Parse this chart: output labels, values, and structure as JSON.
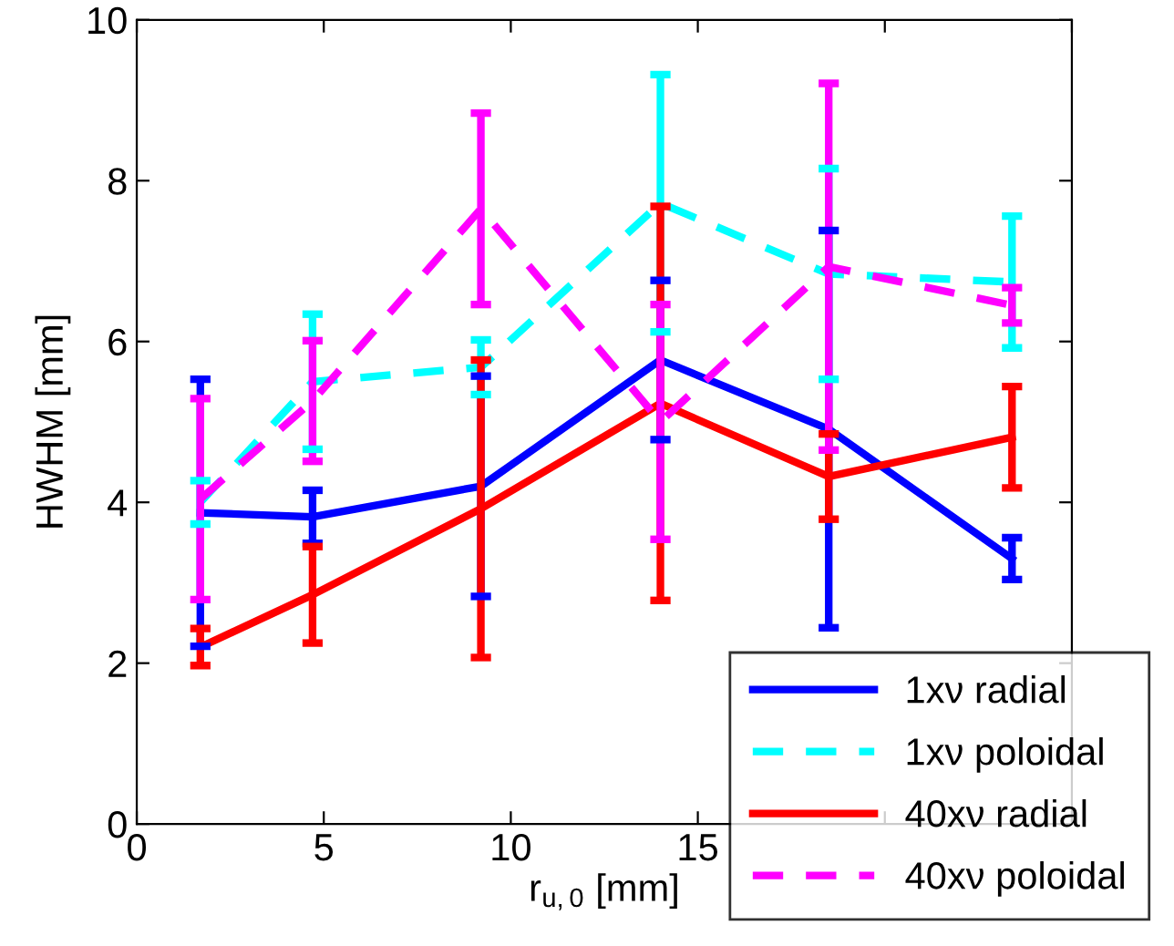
{
  "chart_data": {
    "type": "line",
    "xlabel": "r$_{u,0}$ [mm]",
    "ylabel": "HWHM [mm]",
    "x": [
      1.7,
      4.7,
      9.2,
      14.0,
      18.5,
      23.4
    ],
    "xlim": [
      0,
      25
    ],
    "xticks": [
      0,
      5,
      10,
      15,
      {
        "value": 20,
        "label": null
      },
      {
        "value": 25,
        "label": null
      }
    ],
    "ylim": [
      0,
      10
    ],
    "yticks": [
      0,
      2,
      4,
      6,
      8,
      10
    ],
    "grid": false,
    "legend": "bottom right",
    "marker": "none",
    "series": [
      {
        "name": "1xν radial",
        "color": "#0000ff",
        "line_style": "solid",
        "values": [
          3.87,
          3.82,
          4.2,
          5.77,
          4.91,
          3.3
        ],
        "errors": [
          1.66,
          0.33,
          1.37,
          0.99,
          2.47,
          0.26
        ]
      },
      {
        "name": "1xν poloidal",
        "color": "#00ffff",
        "line_style": "dashed",
        "values": [
          4.0,
          5.5,
          5.68,
          7.72,
          6.84,
          6.74
        ],
        "errors": [
          0.27,
          0.84,
          0.34,
          1.6,
          1.31,
          0.82
        ]
      },
      {
        "name": "40xν radial",
        "color": "#ff0000",
        "line_style": "solid",
        "values": [
          2.2,
          2.85,
          3.92,
          5.23,
          4.32,
          4.81
        ],
        "errors": [
          0.23,
          0.6,
          1.85,
          2.45,
          0.53,
          0.63
        ]
      },
      {
        "name": "40xν poloidal",
        "color": "#ff00ff",
        "line_style": "dashed",
        "values": [
          4.04,
          5.26,
          7.65,
          5.0,
          6.93,
          6.45
        ],
        "errors": [
          1.25,
          0.75,
          1.19,
          1.46,
          2.28,
          0.22
        ]
      }
    ]
  }
}
